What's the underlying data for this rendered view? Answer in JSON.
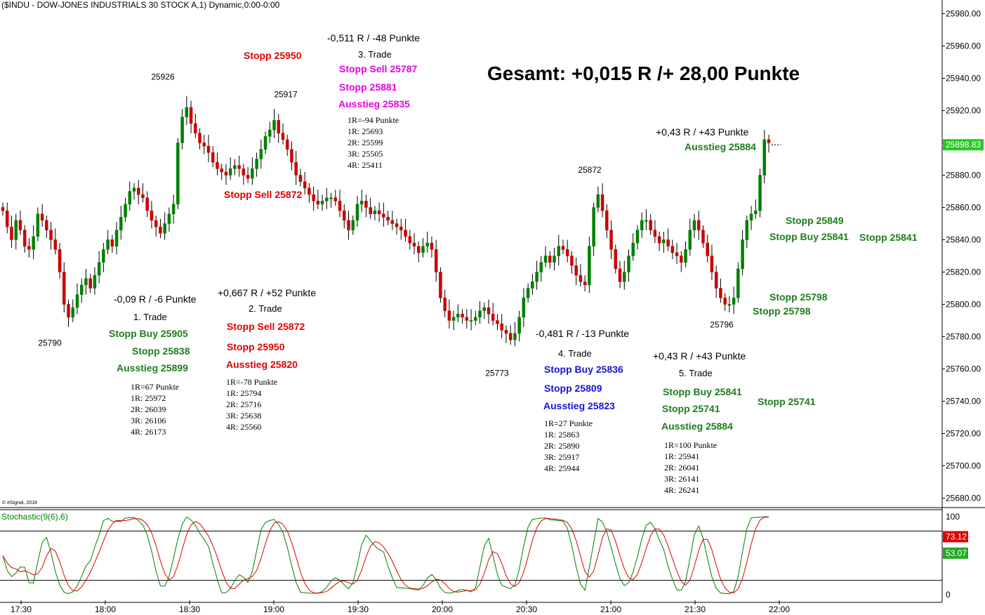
{
  "header": {
    "title": "($INDU - DOW-JONES INDUSTRIALS 30 STOCK A,1) Dynamic,0:00-0:00"
  },
  "credit": "© eSignal, 2018",
  "total": "Gesamt: +0,015 R /+ 28,00 Punkte",
  "chart_data": {
    "type": "candlestick",
    "price_ticks": [
      "25980.00",
      "25960.00",
      "25940.00",
      "25920.00",
      "25900.00",
      "25880.00",
      "25860.00",
      "25840.00",
      "25820.00",
      "25800.00",
      "25780.00",
      "25760.00",
      "25740.00",
      "25720.00",
      "25700.00",
      "25680.00"
    ],
    "time_ticks": [
      "17:30",
      "18:00",
      "18:30",
      "19:00",
      "19:30",
      "20:00",
      "20:30",
      "21:00",
      "21:30",
      "22:00"
    ],
    "ylim": [
      25672,
      25990
    ],
    "last_price": "25898.83",
    "last_value": 25898.83,
    "closes": [
      25858,
      25848,
      25840,
      25852,
      25846,
      25836,
      25834,
      25842,
      25856,
      25852,
      25846,
      25840,
      25834,
      25820,
      25800,
      25792,
      25798,
      25806,
      25812,
      25816,
      25810,
      25818,
      25826,
      25834,
      25840,
      25836,
      25846,
      25854,
      25862,
      25870,
      25872,
      25868,
      25866,
      25858,
      25852,
      25848,
      25844,
      25850,
      25856,
      25862,
      25900,
      25916,
      25922,
      25912,
      25906,
      25900,
      25898,
      25894,
      25888,
      25884,
      25882,
      25880,
      25884,
      25886,
      25884,
      25880,
      25878,
      25884,
      25890,
      25896,
      25904,
      25908,
      25914,
      25906,
      25902,
      25896,
      25888,
      25880,
      25876,
      25872,
      25868,
      25864,
      25862,
      25864,
      25866,
      25866,
      25864,
      25858,
      25852,
      25846,
      25852,
      25862,
      25864,
      25860,
      25856,
      25858,
      25856,
      25854,
      25852,
      25850,
      25848,
      25846,
      25842,
      25838,
      25836,
      25832,
      25836,
      25838,
      25834,
      25820,
      25804,
      25796,
      25790,
      25792,
      25794,
      25792,
      25790,
      25790,
      25792,
      25796,
      25798,
      25794,
      25790,
      25788,
      25784,
      25782,
      25778,
      25782,
      25792,
      25804,
      25810,
      25814,
      25820,
      25826,
      25830,
      25826,
      25830,
      25836,
      25834,
      25830,
      25824,
      25818,
      25814,
      25812,
      25836,
      25860,
      25868,
      25858,
      25846,
      25834,
      25822,
      25814,
      25820,
      25830,
      25838,
      25846,
      25852,
      25852,
      25846,
      25842,
      25838,
      25840,
      25836,
      25832,
      25830,
      25826,
      25834,
      25846,
      25852,
      25846,
      25838,
      25830,
      25820,
      25810,
      25804,
      25800,
      25800,
      25804,
      25822,
      25840,
      25852,
      25856,
      25858,
      25880,
      25902,
      25900
    ],
    "high_markers": [
      {
        "label": "25926",
        "value": 25926
      },
      {
        "label": "25917",
        "value": 25917
      },
      {
        "label": "25872",
        "value": 25872
      }
    ],
    "low_markers": [
      {
        "label": "25790",
        "value": 25790
      },
      {
        "label": "25773",
        "value": 25773
      },
      {
        "label": "25796",
        "value": 25796
      }
    ],
    "stochastic": {
      "label": "Stochastic(9(6),6)",
      "ticks": [
        "100",
        "0"
      ],
      "upper_level": 80,
      "lower_level": 20,
      "k_last": "53.07",
      "d_last": "73.12",
      "k_last_value": 53.07,
      "d_last_value": 73.12
    }
  },
  "annotations": [
    {
      "text": "-0,511 R / -48 Punkte",
      "style": "hdr"
    },
    {
      "text": "3. Trade",
      "style": "sub"
    },
    {
      "text": "Stopp Sell 25787",
      "style": "magenta"
    },
    {
      "text": "Stopp 25881",
      "style": "magenta"
    },
    {
      "text": "Ausstieg 25835",
      "style": "magenta"
    },
    {
      "text": "1R=-94 Punkte",
      "style": "sm"
    },
    {
      "text": "1R: 25693",
      "style": "sm"
    },
    {
      "text": "2R: 25599",
      "style": "sm"
    },
    {
      "text": "3R: 25505",
      "style": "sm"
    },
    {
      "text": "4R: 25411",
      "style": "sm"
    },
    {
      "text": "Stopp 25950",
      "style": "red"
    },
    {
      "text": "Stopp Sell 25872",
      "style": "red"
    },
    {
      "text": "+0,43 R / +43 Punkte",
      "style": "hdr"
    },
    {
      "text": "Ausstieg 25884",
      "style": "green"
    },
    {
      "text": "Stopp 25849",
      "style": "green"
    },
    {
      "text": "Stopp Buy 25841",
      "style": "green"
    },
    {
      "text": "Stopp 25841",
      "style": "green"
    },
    {
      "text": "Stopp 25798",
      "style": "green"
    },
    {
      "text": "Stopp 25798",
      "style": "green"
    },
    {
      "text": "-0,09 R / -6 Punkte",
      "style": "hdr"
    },
    {
      "text": "1. Trade",
      "style": "sub"
    },
    {
      "text": "Stopp Buy 25905",
      "style": "green"
    },
    {
      "text": "Stopp 25838",
      "style": "green"
    },
    {
      "text": "Ausstieg 25899",
      "style": "green"
    },
    {
      "text": "1R=67 Punkte",
      "style": "sm"
    },
    {
      "text": "1R: 25972",
      "style": "sm"
    },
    {
      "text": "2R: 26039",
      "style": "sm"
    },
    {
      "text": "3R: 26106",
      "style": "sm"
    },
    {
      "text": "4R: 26173",
      "style": "sm"
    },
    {
      "text": "+0,667 R / +52 Punkte",
      "style": "hdr"
    },
    {
      "text": "2. Trade",
      "style": "sub"
    },
    {
      "text": "Stopp Sell 25872",
      "style": "red"
    },
    {
      "text": "Stopp 25950",
      "style": "red"
    },
    {
      "text": "Ausstieg 25820",
      "style": "red"
    },
    {
      "text": "1R=-78 Punkte",
      "style": "sm"
    },
    {
      "text": "1R: 25794",
      "style": "sm"
    },
    {
      "text": "2R: 25716",
      "style": "sm"
    },
    {
      "text": "3R: 25638",
      "style": "sm"
    },
    {
      "text": "4R: 25560",
      "style": "sm"
    },
    {
      "text": "-0,481 R / -13 Punkte",
      "style": "hdr"
    },
    {
      "text": "4. Trade",
      "style": "sub"
    },
    {
      "text": "Stopp Buy 25836",
      "style": "blue"
    },
    {
      "text": "Stopp 25809",
      "style": "blue"
    },
    {
      "text": "Ausstieg 25823",
      "style": "blue"
    },
    {
      "text": "1R=27 Punkte",
      "style": "sm"
    },
    {
      "text": "1R: 25863",
      "style": "sm"
    },
    {
      "text": "2R: 25890",
      "style": "sm"
    },
    {
      "text": "3R: 25917",
      "style": "sm"
    },
    {
      "text": "4R: 25944",
      "style": "sm"
    },
    {
      "text": "+0,43 R / +43 Punkte",
      "style": "hdr"
    },
    {
      "text": "5. Trade",
      "style": "sub"
    },
    {
      "text": "Stopp Buy 25841",
      "style": "green"
    },
    {
      "text": "Stopp 25741",
      "style": "green"
    },
    {
      "text": "Ausstieg 25884",
      "style": "green"
    },
    {
      "text": "Stopp 25741",
      "style": "green"
    },
    {
      "text": "1R=100 Punkte",
      "style": "sm"
    },
    {
      "text": "1R: 25941",
      "style": "sm"
    },
    {
      "text": "2R: 26041",
      "style": "sm"
    },
    {
      "text": "3R: 26141",
      "style": "sm"
    },
    {
      "text": "4R: 26241",
      "style": "sm"
    }
  ],
  "colors": {
    "up": "#008000",
    "down": "#cc0000",
    "green_text": "#1e7d1e",
    "red_text": "#e00000",
    "magenta_text": "#e800e8",
    "blue_text": "#1515d8",
    "k_line": "#008000",
    "d_line": "#dd0000"
  }
}
